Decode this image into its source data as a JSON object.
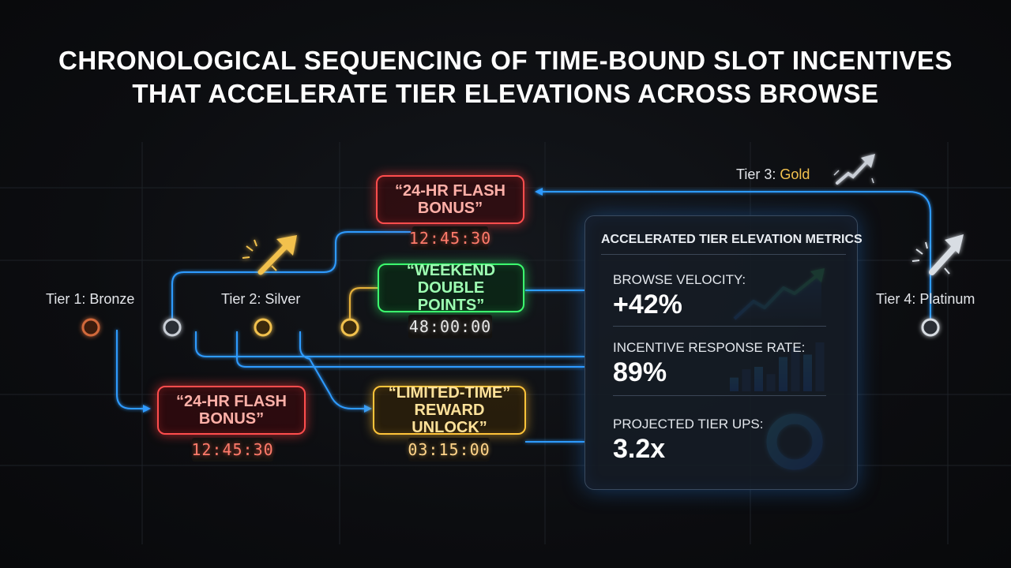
{
  "title": {
    "line1": "CHRONOLOGICAL SEQUENCING OF TIME-BOUND SLOT INCENTIVES",
    "line2": "THAT ACCELERATE TIER ELEVATIONS ACROSS BROWSE"
  },
  "tiers": {
    "tier1": "Tier 1: Bronze",
    "tier2": "Tier 2: Silver",
    "tier3_prefix": "Tier 3: ",
    "tier3_level": "Gold",
    "tier4": "Tier 4: Platinum"
  },
  "incentives": {
    "flash_top": {
      "text": "“24-HR FLASH BONUS”",
      "timer": "12:45:30"
    },
    "weekend": {
      "text": "“WEEKEND DOUBLE POINTS”",
      "timer": "48:00:00"
    },
    "flash_bottom": {
      "text": "“24-HR FLASH BONUS”",
      "timer": "12:45:30"
    },
    "limited": {
      "text": "“LIMITED-TIME” REWARD UNLOCK”",
      "timer": "03:15:00"
    }
  },
  "metrics": {
    "title": "ACCELERATED TIER ELEVATION METRICS",
    "browse_velocity": {
      "label": "BROWSE VELOCITY:",
      "value": "+42%"
    },
    "response_rate": {
      "label": "INCENTIVE RESPONSE RATE:",
      "value": "89%",
      "bars": [
        0.28,
        0.45,
        0.5,
        0.35,
        0.7,
        0.9,
        0.75,
        1.0
      ]
    },
    "tier_ups": {
      "label": "PROJECTED TIER UPS:",
      "value": "3.2x"
    }
  },
  "colors": {
    "bronze": "#d2693a",
    "silver": "#c9ced6",
    "gold": "#f2c14e",
    "platinum": "#d8dde3",
    "red": "#ff4d4d",
    "green": "#3cff6e",
    "amber": "#ffc43a",
    "blue": "#1e90ff"
  }
}
